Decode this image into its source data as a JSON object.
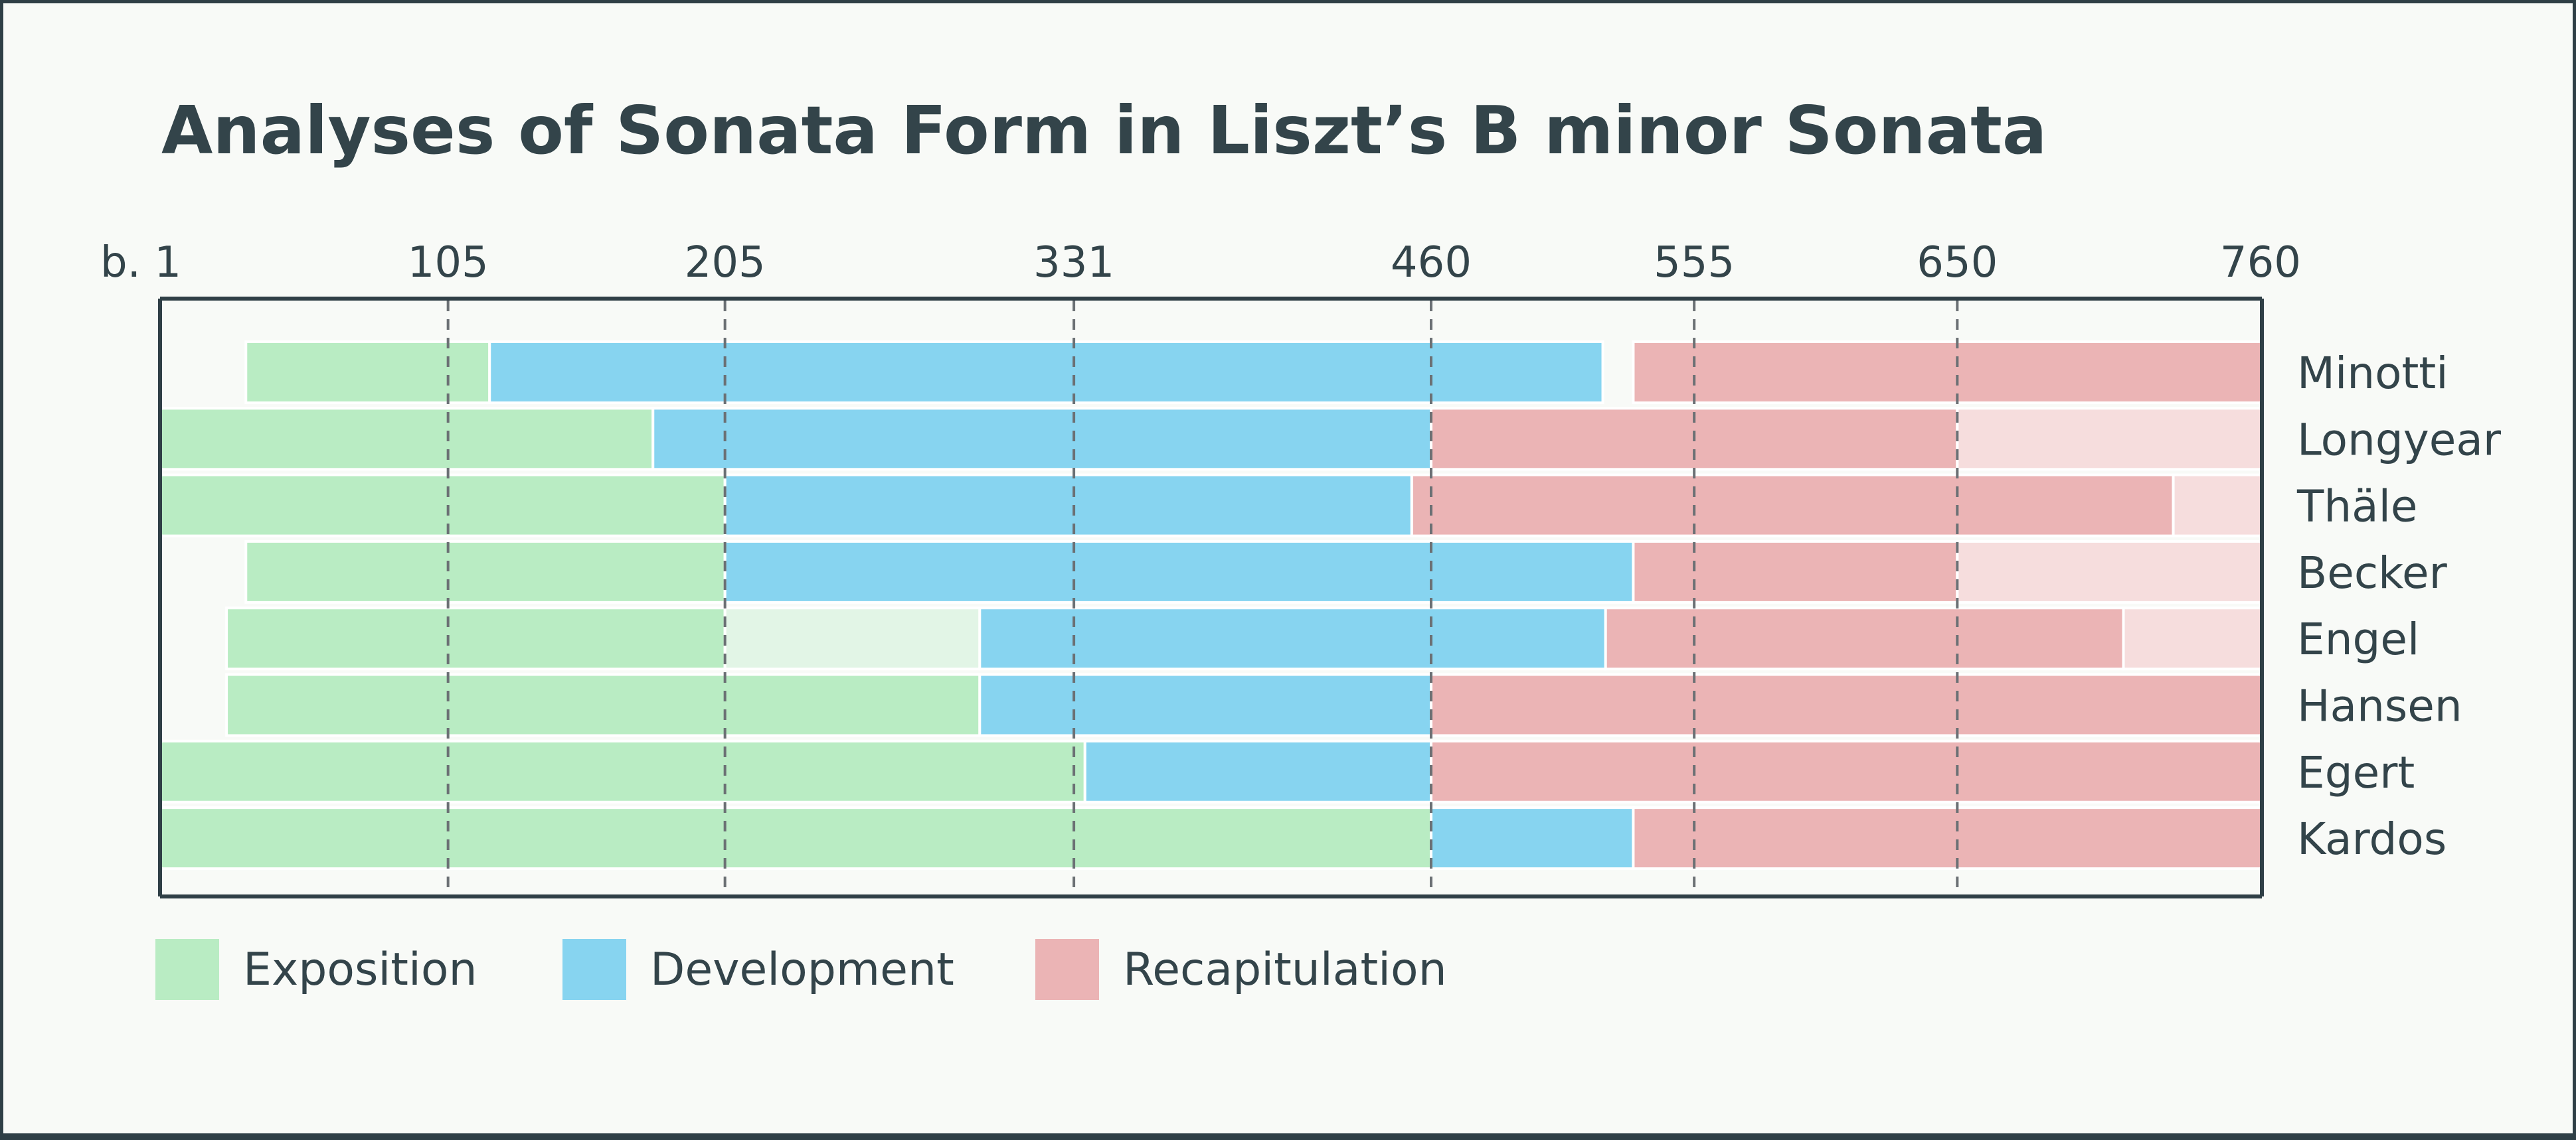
{
  "colors": {
    "exposition": "#b9ecc3",
    "exposition_light": "#e2f5e6",
    "development": "#87d4f0",
    "recapitulation": "#ebb4b5",
    "recapitulation_light": "#f6dddd",
    "text": "#33444a",
    "axis": "#2f3f46",
    "grid": "#6b7074"
  },
  "chart_data": {
    "type": "bar",
    "title": "Analyses of Sonata Form in Liszt’s B minor Sonata",
    "xlim": [
      1,
      760
    ],
    "ticks": [
      {
        "value": 1,
        "label": "b. 1"
      },
      {
        "value": 105,
        "label": "105"
      },
      {
        "value": 205,
        "label": "205"
      },
      {
        "value": 331,
        "label": "331"
      },
      {
        "value": 460,
        "label": "460"
      },
      {
        "value": 555,
        "label": "555"
      },
      {
        "value": 650,
        "label": "650"
      },
      {
        "value": 760,
        "label": "760"
      }
    ],
    "grid_lines": [
      105,
      205,
      331,
      460,
      555,
      650
    ],
    "grid": true,
    "orientation": "horizontal",
    "legend_position": "bottom-left",
    "legend": [
      {
        "key": "exposition",
        "label": "Exposition"
      },
      {
        "key": "development",
        "label": "Development"
      },
      {
        "key": "recapitulation",
        "label": "Recapitulation"
      }
    ],
    "rows": [
      {
        "name": "Minotti",
        "segments": [
          {
            "section": "exposition",
            "start": 32,
            "end": 120
          },
          {
            "section": "development",
            "start": 120,
            "end": 522
          },
          {
            "section": "recapitulation",
            "start": 533,
            "end": 760
          }
        ]
      },
      {
        "name": "Longyear",
        "segments": [
          {
            "section": "exposition",
            "start": 1,
            "end": 179
          },
          {
            "section": "development",
            "start": 179,
            "end": 460
          },
          {
            "section": "recapitulation",
            "start": 460,
            "end": 650
          },
          {
            "section": "recapitulation_light",
            "start": 650,
            "end": 760
          }
        ]
      },
      {
        "name": "Thäle",
        "segments": [
          {
            "section": "exposition",
            "start": 1,
            "end": 205
          },
          {
            "section": "development",
            "start": 205,
            "end": 453
          },
          {
            "section": "recapitulation",
            "start": 453,
            "end": 728
          },
          {
            "section": "recapitulation_light",
            "start": 728,
            "end": 760
          }
        ]
      },
      {
        "name": "Becker",
        "segments": [
          {
            "section": "exposition",
            "start": 32,
            "end": 205
          },
          {
            "section": "development",
            "start": 205,
            "end": 533
          },
          {
            "section": "recapitulation",
            "start": 533,
            "end": 650
          },
          {
            "section": "recapitulation_light",
            "start": 650,
            "end": 760
          }
        ]
      },
      {
        "name": "Engel",
        "segments": [
          {
            "section": "exposition",
            "start": 25,
            "end": 205
          },
          {
            "section": "exposition_light",
            "start": 205,
            "end": 297
          },
          {
            "section": "development",
            "start": 297,
            "end": 523
          },
          {
            "section": "recapitulation",
            "start": 523,
            "end": 710
          },
          {
            "section": "recapitulation_light",
            "start": 710,
            "end": 760
          }
        ]
      },
      {
        "name": "Hansen",
        "segments": [
          {
            "section": "exposition",
            "start": 25,
            "end": 297
          },
          {
            "section": "development",
            "start": 297,
            "end": 460
          },
          {
            "section": "recapitulation",
            "start": 460,
            "end": 760
          }
        ]
      },
      {
        "name": "Egert",
        "segments": [
          {
            "section": "exposition",
            "start": 1,
            "end": 335
          },
          {
            "section": "development",
            "start": 335,
            "end": 460
          },
          {
            "section": "recapitulation",
            "start": 460,
            "end": 760
          }
        ]
      },
      {
        "name": "Kardos",
        "segments": [
          {
            "section": "exposition",
            "start": 1,
            "end": 460
          },
          {
            "section": "development",
            "start": 460,
            "end": 533
          },
          {
            "section": "recapitulation",
            "start": 533,
            "end": 760
          }
        ]
      }
    ]
  }
}
